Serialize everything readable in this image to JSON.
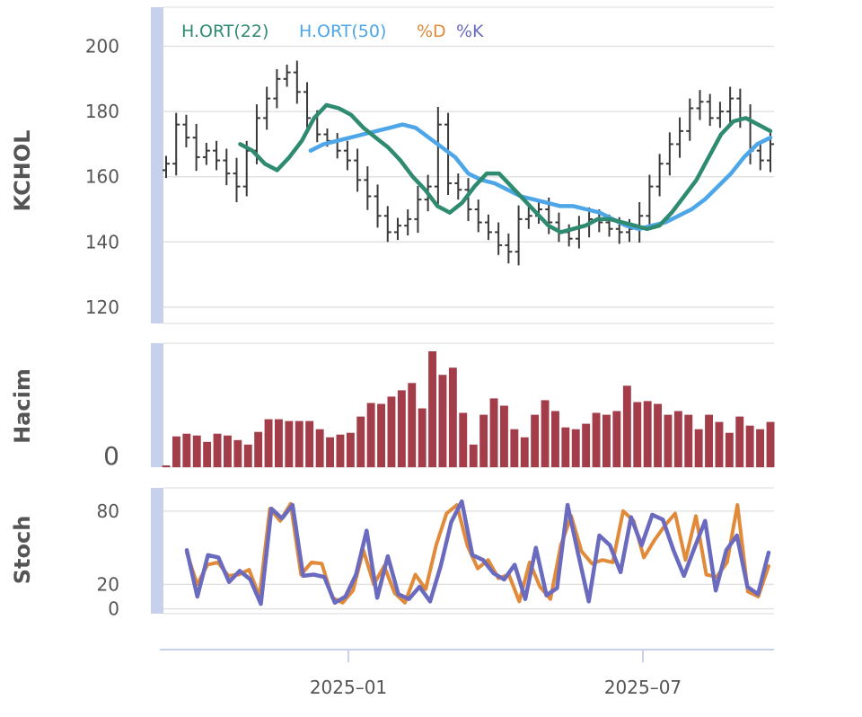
{
  "chart_data": [
    {
      "type": "ohlc",
      "ylabel": "KCHOL",
      "ylim": [
        115,
        212
      ],
      "yticks": [
        120,
        140,
        160,
        180,
        200
      ],
      "grid": true,
      "legend": {
        "placement": "top-left",
        "entries": [
          {
            "label": "H.ORT(22)",
            "color": "#2e8b70"
          },
          {
            "label": "H.ORT(50)",
            "color": "#4da6e8"
          },
          {
            "label": "%D",
            "color": "#e08a3a"
          },
          {
            "label": "%K",
            "color": "#6a6abf"
          }
        ]
      },
      "close": [
        164,
        176,
        172,
        166,
        168,
        165,
        161,
        157,
        168,
        178,
        184,
        190,
        192,
        186,
        178,
        173,
        171,
        168,
        165,
        159,
        154,
        148,
        143,
        145,
        147,
        153,
        157,
        176,
        158,
        156,
        150,
        146,
        143,
        139,
        137,
        147,
        148,
        150,
        146,
        143,
        141,
        145,
        147,
        146,
        144,
        143,
        144,
        148,
        157,
        164,
        170,
        174,
        181,
        183,
        178,
        180,
        184,
        178,
        168,
        165,
        170
      ],
      "ma22": [
        null,
        null,
        null,
        null,
        null,
        null,
        170,
        168,
        164,
        162,
        166,
        171,
        178,
        182,
        181,
        179,
        175,
        172,
        169,
        165,
        160,
        156,
        151,
        149,
        152,
        157,
        161,
        161,
        157,
        153,
        149,
        145,
        143,
        144,
        145,
        147,
        147,
        146,
        145,
        144,
        145,
        149,
        154,
        159,
        166,
        173,
        177,
        178,
        176,
        174
      ],
      "ma50": [
        null,
        null,
        null,
        null,
        null,
        null,
        null,
        null,
        null,
        null,
        null,
        168,
        170,
        171,
        172,
        173,
        174,
        175,
        176,
        175,
        172,
        169,
        166,
        161,
        159,
        158,
        156,
        154,
        153,
        152,
        151,
        151,
        150,
        149,
        147,
        145,
        144,
        145,
        146,
        148,
        150,
        153,
        157,
        161,
        166,
        170,
        172
      ]
    },
    {
      "type": "bar",
      "ylabel": "Hacim",
      "yticks": [
        0
      ],
      "values": [
        2,
        34,
        37,
        35,
        28,
        37,
        35,
        30,
        25,
        39,
        53,
        53,
        51,
        51,
        51,
        42,
        33,
        36,
        38,
        56,
        71,
        70,
        78,
        85,
        93,
        65,
        128,
        102,
        110,
        60,
        25,
        58,
        76,
        68,
        42,
        33,
        58,
        74,
        62,
        44,
        42,
        48,
        60,
        58,
        62,
        90,
        72,
        73,
        70,
        58,
        62,
        58,
        42,
        58,
        50,
        38,
        56,
        46,
        42,
        50
      ]
    },
    {
      "type": "line",
      "ylabel": "Stoch",
      "ylim": [
        -4,
        99
      ],
      "yticks": [
        0,
        20,
        80
      ],
      "series": [
        {
          "name": "%D",
          "color": "#e08a3a",
          "values": [
            46,
            20,
            36,
            38,
            27,
            28,
            32,
            10,
            82,
            72,
            86,
            28,
            38,
            37,
            9,
            5,
            15,
            48,
            20,
            35,
            13,
            5,
            28,
            16,
            52,
            78,
            85,
            52,
            33,
            40,
            25,
            28,
            6,
            38,
            18,
            8,
            52,
            76,
            47,
            37,
            40,
            38,
            80,
            72,
            42,
            56,
            68,
            78,
            40,
            76,
            28,
            26,
            38,
            85,
            14,
            10,
            35
          ]
        },
        {
          "name": "%K",
          "color": "#6a6abf",
          "values": [
            48,
            10,
            44,
            42,
            22,
            31,
            24,
            4,
            82,
            74,
            85,
            27,
            28,
            26,
            5,
            10,
            28,
            64,
            9,
            43,
            12,
            8,
            18,
            6,
            35,
            71,
            88,
            44,
            40,
            29,
            24,
            36,
            8,
            50,
            11,
            17,
            85,
            45,
            6,
            60,
            52,
            30,
            75,
            52,
            77,
            73,
            48,
            27,
            50,
            72,
            15,
            48,
            60,
            18,
            12,
            46
          ]
        }
      ]
    }
  ],
  "x_axis": {
    "ticks": [
      "2025–01",
      "2025–07"
    ]
  }
}
